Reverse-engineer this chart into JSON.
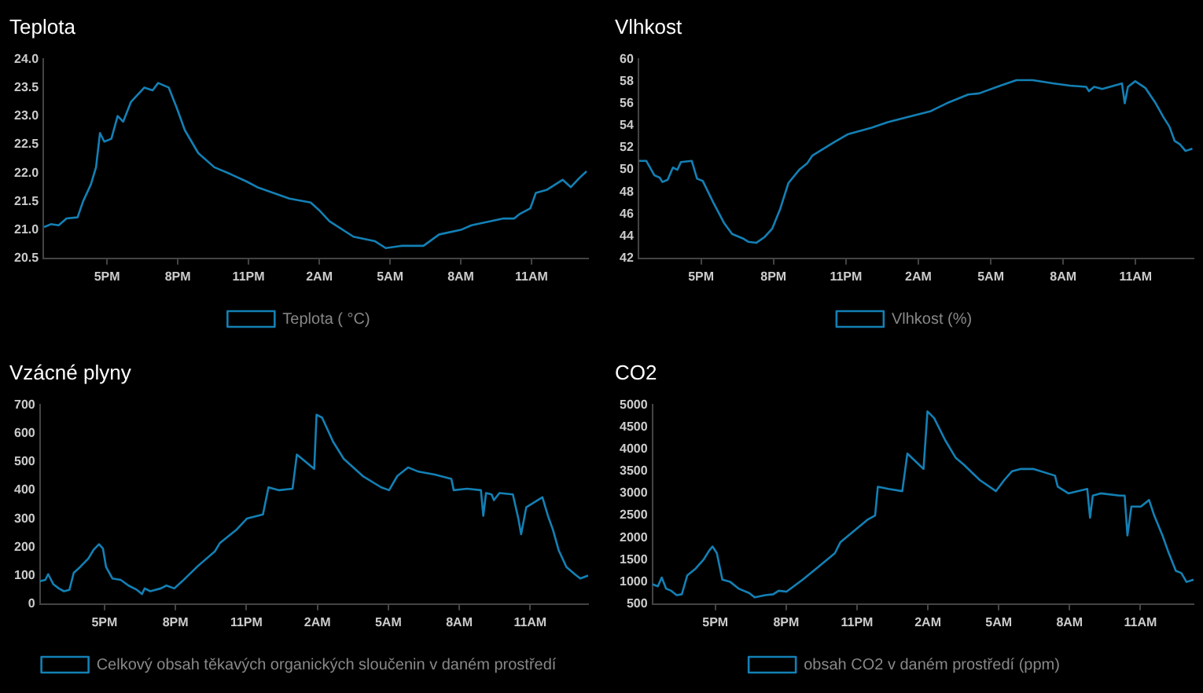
{
  "chart_data": [
    {
      "type": "line",
      "title": "Teplota",
      "legend": "bottom",
      "grid": false,
      "marker": "none",
      "xlim": [
        "--01-01T14:18",
        "--01-02T13:24"
      ],
      "ylim": [
        20.5,
        24.0
      ],
      "yticks": [
        {
          "value": 20.5,
          "label": "20.5"
        },
        {
          "value": 21,
          "label": "21.0"
        },
        {
          "value": 21.5,
          "label": "21.5"
        },
        {
          "value": 22,
          "label": "22.0"
        },
        {
          "value": 22.5,
          "label": "22.5"
        },
        {
          "value": 23,
          "label": "23.0"
        },
        {
          "value": 23.5,
          "label": "23.5"
        },
        {
          "value": 24,
          "label": "24.0"
        }
      ],
      "xticks": [
        {
          "value": "--01-01T17:00",
          "label": "5PM"
        },
        {
          "value": "--01-01T20:00",
          "label": "8PM"
        },
        {
          "value": "--01-01T23:00",
          "label": "11PM"
        },
        {
          "value": "--01-02T02:00",
          "label": "2AM"
        },
        {
          "value": "--01-02T05:00",
          "label": "5AM"
        },
        {
          "value": "--01-02T08:00",
          "label": "8AM"
        },
        {
          "value": "--01-02T11:00",
          "label": "11AM"
        }
      ],
      "series": [
        {
          "name": "Teplota ( °C)",
          "color": "#1380b5",
          "x": [
            "--01-01T14:20",
            "--01-01T14:37",
            "--01-01T14:57",
            "--01-01T15:17",
            "--01-01T15:45",
            "--01-01T15:59",
            "--01-01T16:19",
            "--01-01T16:32",
            "--01-01T16:42",
            "--01-01T16:53",
            "--01-01T17:11",
            "--01-01T17:27",
            "--01-01T17:41",
            "--01-01T18:01",
            "--01-01T18:35",
            "--01-01T18:56",
            "--01-01T19:10",
            "--01-01T19:37",
            "--01-01T19:57",
            "--01-01T20:18",
            "--01-01T20:52",
            "--01-01T21:33",
            "--01-01T22:14",
            "--01-01T22:55",
            "--01-01T23:22",
            "--01-02T00:44",
            "--01-02T01:38",
            "--01-02T01:59",
            "--01-02T02:26",
            "--01-02T03:27",
            "--01-02T04:22",
            "--01-02T04:49",
            "--01-02T05:30",
            "--01-02T06:25",
            "--01-02T07:05",
            "--01-02T08:00",
            "--01-02T08:27",
            "--01-02T09:49",
            "--01-02T10:16",
            "--01-02T10:30",
            "--01-02T10:57",
            "--01-02T11:11",
            "--01-02T11:38",
            "--01-02T12:19",
            "--01-02T12:40",
            "--01-02T13:00",
            "--01-02T13:20"
          ],
          "values": [
            21.05,
            21.1,
            21.08,
            21.2,
            21.22,
            21.5,
            21.8,
            22.1,
            22.7,
            22.55,
            22.6,
            23.0,
            22.9,
            23.25,
            23.5,
            23.45,
            23.58,
            23.5,
            23.15,
            22.75,
            22.35,
            22.1,
            21.98,
            21.85,
            21.75,
            21.55,
            21.48,
            21.35,
            21.15,
            20.88,
            20.8,
            20.68,
            20.72,
            20.72,
            20.92,
            21.0,
            21.08,
            21.2,
            21.2,
            21.28,
            21.38,
            21.65,
            21.7,
            21.88,
            21.75,
            21.9,
            22.03
          ]
        }
      ]
    },
    {
      "type": "line",
      "title": "Vlhkost",
      "legend": "bottom",
      "grid": false,
      "marker": "none",
      "xlim": [
        "--01-01T14:24",
        "--01-02T13:24"
      ],
      "ylim": [
        42,
        60
      ],
      "yticks": [
        42,
        44,
        46,
        48,
        50,
        52,
        54,
        56,
        58,
        60
      ],
      "xticks": [
        {
          "value": "--01-01T17:00",
          "label": "5PM"
        },
        {
          "value": "--01-01T20:00",
          "label": "8PM"
        },
        {
          "value": "--01-01T23:00",
          "label": "11PM"
        },
        {
          "value": "--01-02T02:00",
          "label": "2AM"
        },
        {
          "value": "--01-02T05:00",
          "label": "5AM"
        },
        {
          "value": "--01-02T08:00",
          "label": "8AM"
        },
        {
          "value": "--01-02T11:00",
          "label": "11AM"
        }
      ],
      "series": [
        {
          "name": "Vlhkost (%)",
          "color": "#1380b5",
          "x": [
            "--01-01T14:26",
            "--01-01T14:44",
            "--01-01T15:04",
            "--01-01T15:17",
            "--01-01T15:24",
            "--01-01T15:37",
            "--01-01T15:50",
            "--01-01T16:01",
            "--01-01T16:10",
            "--01-01T16:37",
            "--01-01T16:50",
            "--01-01T17:04",
            "--01-01T17:31",
            "--01-01T17:57",
            "--01-01T18:17",
            "--01-01T18:44",
            "--01-01T18:57",
            "--01-01T19:17",
            "--01-01T19:37",
            "--01-01T19:57",
            "--01-01T20:17",
            "--01-01T20:37",
            "--01-01T21:04",
            "--01-01T21:24",
            "--01-01T21:37",
            "--01-01T22:04",
            "--01-01T22:31",
            "--01-01T23:04",
            "--01-02T00:04",
            "--01-02T00:44",
            "--01-02T01:37",
            "--01-02T02:31",
            "--01-02T03:10",
            "--01-02T04:04",
            "--01-02T04:31",
            "--01-02T05:24",
            "--01-02T06:04",
            "--01-02T06:44",
            "--01-02T07:37",
            "--01-02T08:17",
            "--01-02T08:57",
            "--01-02T09:04",
            "--01-02T09:17",
            "--01-02T09:37",
            "--01-02T10:17",
            "--01-02T10:26",
            "--01-02T10:33",
            "--01-02T10:41",
            "--01-02T10:59",
            "--01-02T11:24",
            "--01-02T11:50",
            "--01-02T12:10",
            "--01-02T12:24",
            "--01-02T12:37",
            "--01-02T12:50",
            "--01-02T13:04",
            "--01-02T13:21"
          ],
          "values": [
            50.8,
            50.8,
            49.5,
            49.3,
            48.9,
            49.1,
            50.2,
            50.0,
            50.7,
            50.8,
            49.2,
            49.0,
            47.0,
            45.2,
            44.2,
            43.8,
            43.5,
            43.4,
            43.9,
            44.7,
            46.5,
            48.8,
            50.0,
            50.6,
            51.3,
            51.9,
            52.5,
            53.2,
            53.8,
            54.3,
            54.8,
            55.3,
            56.0,
            56.8,
            56.9,
            57.6,
            58.1,
            58.1,
            57.8,
            57.6,
            57.5,
            57.1,
            57.5,
            57.3,
            57.7,
            57.8,
            56.0,
            57.5,
            58.0,
            57.4,
            56.0,
            54.7,
            53.9,
            52.6,
            52.3,
            51.7,
            51.9
          ]
        }
      ]
    },
    {
      "type": "line",
      "title": "Vzácné plyny",
      "legend": "bottom",
      "grid": false,
      "marker": "none",
      "xlim": [
        "--01-01T14:16",
        "--01-02T13:27"
      ],
      "ylim": [
        0,
        700
      ],
      "yticks": [
        0,
        100,
        200,
        300,
        400,
        500,
        600,
        700
      ],
      "xticks": [
        {
          "value": "--01-01T17:00",
          "label": "5PM"
        },
        {
          "value": "--01-01T20:00",
          "label": "8PM"
        },
        {
          "value": "--01-01T23:00",
          "label": "11PM"
        },
        {
          "value": "--01-02T02:00",
          "label": "2AM"
        },
        {
          "value": "--01-02T05:00",
          "label": "5AM"
        },
        {
          "value": "--01-02T08:00",
          "label": "8AM"
        },
        {
          "value": "--01-02T11:00",
          "label": "11AM"
        }
      ],
      "series": [
        {
          "name": "Celkový obsah těkavých organických sloučenin v daném prostředí",
          "color": "#1380b5",
          "x": [
            "--01-01T14:16",
            "--01-01T14:30",
            "--01-01T14:37",
            "--01-01T14:50",
            "--01-01T15:04",
            "--01-01T15:17",
            "--01-01T15:31",
            "--01-01T15:42",
            "--01-01T15:58",
            "--01-01T16:19",
            "--01-01T16:32",
            "--01-01T16:46",
            "--01-01T16:56",
            "--01-01T17:04",
            "--01-01T17:20",
            "--01-01T17:41",
            "--01-01T18:01",
            "--01-01T18:22",
            "--01-01T18:35",
            "--01-01T18:42",
            "--01-01T18:56",
            "--01-01T19:23",
            "--01-01T19:37",
            "--01-01T19:57",
            "--01-01T20:17",
            "--01-01T20:58",
            "--01-01T21:40",
            "--01-01T21:53",
            "--01-01T22:34",
            "--01-01T23:01",
            "--01-01T23:42",
            "--01-01T23:56",
            "--01-02T00:23",
            "--01-02T00:57",
            "--01-02T01:08",
            "--01-02T01:52",
            "--01-02T01:58",
            "--01-02T02:12",
            "--01-02T02:40",
            "--01-02T03:07",
            "--01-02T03:55",
            "--01-02T04:42",
            "--01-02T05:02",
            "--01-02T05:23",
            "--01-02T05:50",
            "--01-02T06:17",
            "--01-02T06:58",
            "--01-02T07:40",
            "--01-02T07:46",
            "--01-02T08:20",
            "--01-02T08:55",
            "--01-02T09:01",
            "--01-02T09:08",
            "--01-02T09:22",
            "--01-02T09:28",
            "--01-02T09:42",
            "--01-02T10:16",
            "--01-02T10:30",
            "--01-02T10:37",
            "--01-02T10:50",
            "--01-02T11:31",
            "--01-02T11:45",
            "--01-02T11:58",
            "--01-02T12:12",
            "--01-02T12:32",
            "--01-02T12:53",
            "--01-02T13:07",
            "--01-02T13:27"
          ],
          "values": [
            80,
            85,
            105,
            70,
            55,
            45,
            50,
            110,
            130,
            160,
            190,
            210,
            195,
            130,
            90,
            85,
            65,
            50,
            35,
            55,
            45,
            55,
            65,
            55,
            80,
            135,
            185,
            215,
            260,
            300,
            315,
            410,
            400,
            405,
            525,
            475,
            665,
            655,
            570,
            510,
            450,
            410,
            400,
            450,
            480,
            465,
            455,
            440,
            400,
            405,
            400,
            310,
            390,
            385,
            365,
            390,
            385,
            300,
            245,
            340,
            375,
            310,
            260,
            190,
            130,
            105,
            90,
            100
          ]
        }
      ]
    },
    {
      "type": "line",
      "title": "CO2",
      "legend": "bottom",
      "grid": false,
      "marker": "none",
      "xlim": [
        "--01-01T14:20",
        "--01-02T13:15"
      ],
      "ylim": [
        500,
        5000
      ],
      "yticks": [
        500,
        1000,
        1500,
        2000,
        2500,
        3000,
        3500,
        4000,
        4500,
        5000
      ],
      "xticks": [
        {
          "value": "--01-01T17:00",
          "label": "5PM"
        },
        {
          "value": "--01-01T20:00",
          "label": "8PM"
        },
        {
          "value": "--01-01T23:00",
          "label": "11PM"
        },
        {
          "value": "--01-02T02:00",
          "label": "2AM"
        },
        {
          "value": "--01-02T05:00",
          "label": "5AM"
        },
        {
          "value": "--01-02T08:00",
          "label": "8AM"
        },
        {
          "value": "--01-02T11:00",
          "label": "11AM"
        }
      ],
      "series": [
        {
          "name": "obsah CO2 v daném prostředí (ppm)",
          "color": "#1380b5",
          "x": [
            "--01-01T14:20",
            "--01-01T14:34",
            "--01-01T14:44",
            "--01-01T14:55",
            "--01-01T15:08",
            "--01-01T15:22",
            "--01-01T15:35",
            "--01-01T15:49",
            "--01-01T16:10",
            "--01-01T16:30",
            "--01-01T16:44",
            "--01-01T16:53",
            "--01-01T17:04",
            "--01-01T17:18",
            "--01-01T17:38",
            "--01-01T17:59",
            "--01-01T18:26",
            "--01-01T18:40",
            "--01-01T19:07",
            "--01-01T19:27",
            "--01-01T19:41",
            "--01-01T20:01",
            "--01-01T20:42",
            "--01-01T21:23",
            "--01-01T22:04",
            "--01-01T22:18",
            "--01-01T22:59",
            "--01-01T23:26",
            "--01-01T23:46",
            "--01-01T23:53",
            "--01-02T00:20",
            "--01-02T00:55",
            "--01-02T01:08",
            "--01-02T01:49",
            "--01-02T01:59",
            "--01-02T02:16",
            "--01-02T02:44",
            "--01-02T03:11",
            "--01-02T03:31",
            "--01-02T04:12",
            "--01-02T04:53",
            "--01-02T05:14",
            "--01-02T05:34",
            "--01-02T05:55",
            "--01-02T06:29",
            "--01-02T07:23",
            "--01-02T07:30",
            "--01-02T07:57",
            "--01-02T08:45",
            "--01-02T08:52",
            "--01-02T08:59",
            "--01-02T09:19",
            "--01-02T10:07",
            "--01-02T10:20",
            "--01-02T10:27",
            "--01-02T10:37",
            "--01-02T11:01",
            "--01-02T11:22",
            "--01-02T11:35",
            "--01-02T11:56",
            "--01-02T12:10",
            "--01-02T12:30",
            "--01-02T12:44",
            "--01-02T12:57",
            "--01-02T13:15"
          ],
          "values": [
            950,
            900,
            1100,
            850,
            800,
            700,
            720,
            1150,
            1300,
            1500,
            1700,
            1800,
            1650,
            1050,
            1000,
            850,
            750,
            650,
            700,
            720,
            800,
            780,
            1050,
            1350,
            1650,
            1900,
            2200,
            2400,
            2500,
            3150,
            3100,
            3050,
            3900,
            3550,
            4850,
            4700,
            4200,
            3800,
            3650,
            3300,
            3050,
            3300,
            3500,
            3550,
            3550,
            3400,
            3150,
            3000,
            3100,
            2450,
            2950,
            3000,
            2950,
            2950,
            2050,
            2700,
            2700,
            2850,
            2500,
            2050,
            1700,
            1250,
            1200,
            1000,
            1050
          ]
        }
      ]
    }
  ]
}
